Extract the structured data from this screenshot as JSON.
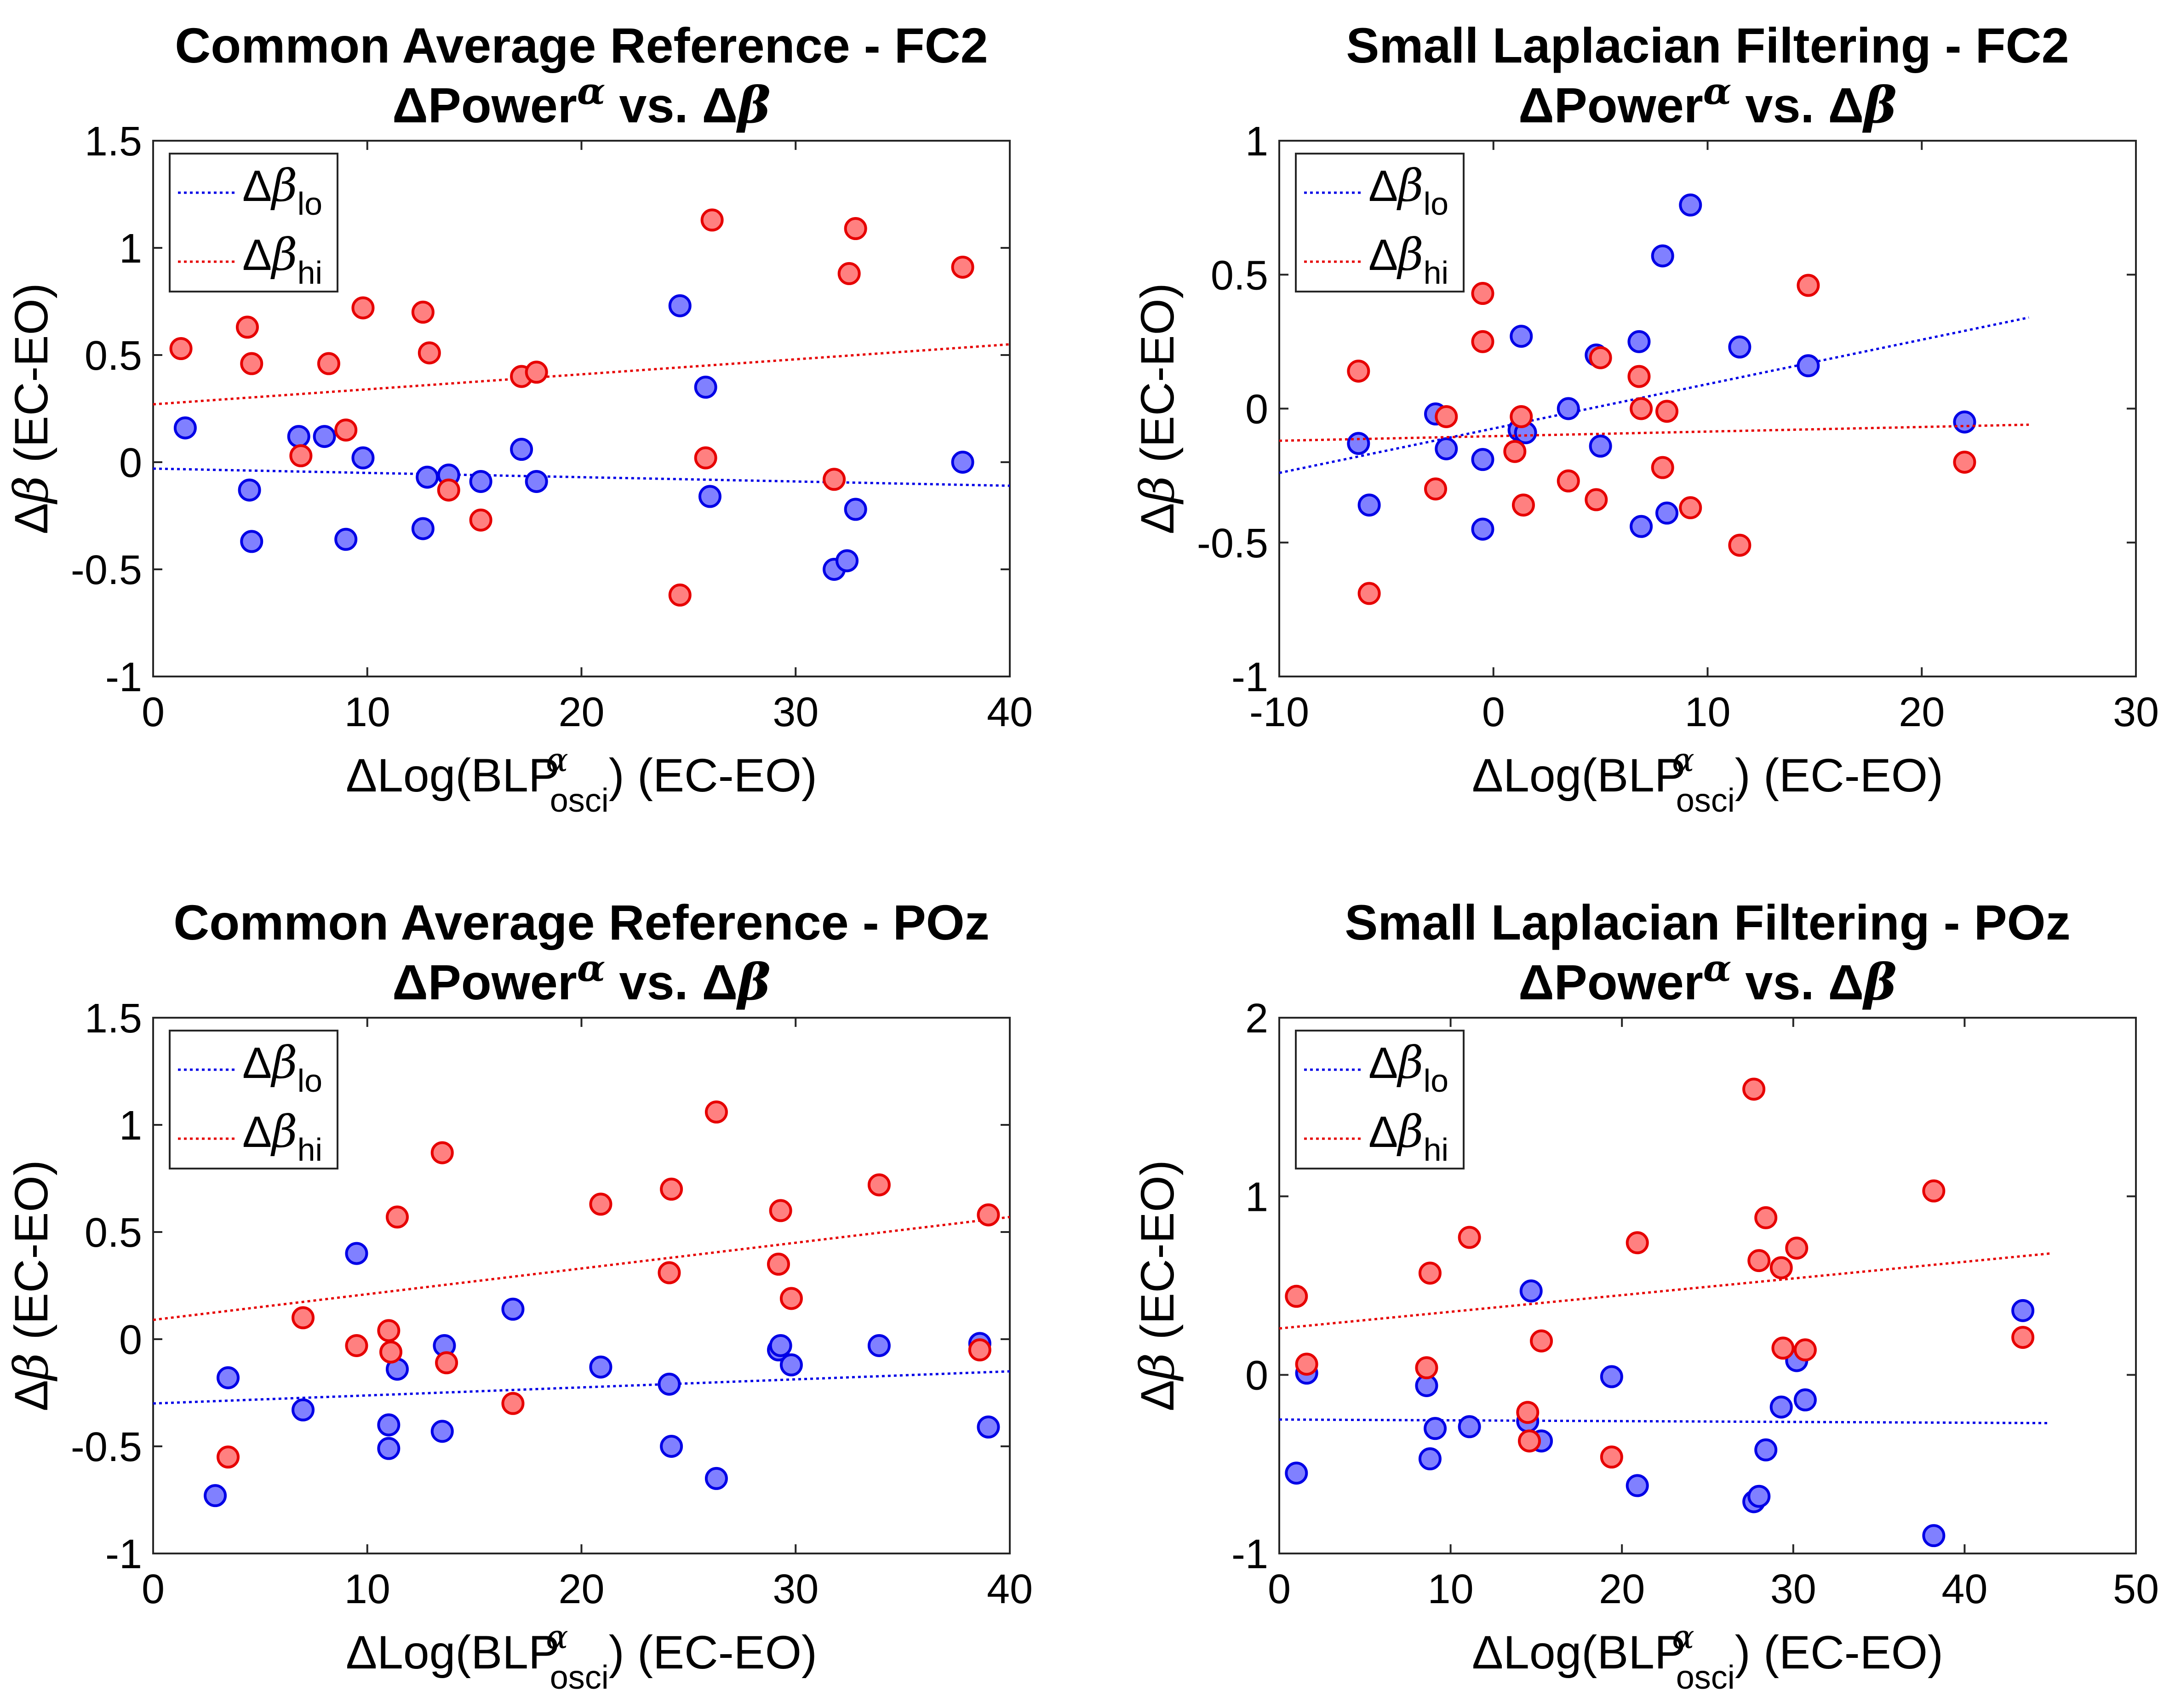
{
  "chart_data": [
    {
      "type": "scatter",
      "title": "Common Average Reference - FC2",
      "subtitle": "ΔPowerα vs. Δβ",
      "xlabel": "ΔLog(BLPαosci) (EC-EO)",
      "ylabel": "Δβ (EC-EO)",
      "xlim": [
        0,
        40
      ],
      "ylim": [
        -1,
        1.5
      ],
      "xticks": [
        0,
        10,
        20,
        30,
        40
      ],
      "yticks": [
        -1,
        -0.5,
        0,
        0.5,
        1,
        1.5
      ],
      "legend_placement": "top-left",
      "series": [
        {
          "name": "Δβlo",
          "color": "#0000e6",
          "fill": "#8080ff",
          "trend": [
            [
              0,
              -0.03
            ],
            [
              40,
              -0.11
            ]
          ],
          "points": [
            [
              1.5,
              0.16
            ],
            [
              4.5,
              -0.13
            ],
            [
              4.6,
              -0.37
            ],
            [
              6.8,
              0.12
            ],
            [
              8,
              0.12
            ],
            [
              9,
              -0.36
            ],
            [
              9.8,
              0.02
            ],
            [
              12.6,
              -0.31
            ],
            [
              12.8,
              -0.07
            ],
            [
              13.8,
              -0.06
            ],
            [
              15.3,
              -0.09
            ],
            [
              17.2,
              0.06
            ],
            [
              17.9,
              -0.09
            ],
            [
              24.6,
              0.73
            ],
            [
              25.8,
              0.35
            ],
            [
              26,
              -0.16
            ],
            [
              31.8,
              -0.5
            ],
            [
              32.4,
              -0.46
            ],
            [
              32.8,
              -0.22
            ],
            [
              37.8,
              0
            ]
          ]
        },
        {
          "name": "Δβhi",
          "color": "#e60000",
          "fill": "#ff8080",
          "trend": [
            [
              0,
              0.27
            ],
            [
              40,
              0.55
            ]
          ],
          "points": [
            [
              1.3,
              0.53
            ],
            [
              4.4,
              0.63
            ],
            [
              4.6,
              0.46
            ],
            [
              6.9,
              0.03
            ],
            [
              8.2,
              0.46
            ],
            [
              9,
              0.15
            ],
            [
              9.8,
              0.72
            ],
            [
              12.6,
              0.7
            ],
            [
              12.9,
              0.51
            ],
            [
              13.8,
              -0.13
            ],
            [
              15.3,
              -0.27
            ],
            [
              17.2,
              0.4
            ],
            [
              17.9,
              0.42
            ],
            [
              24.6,
              -0.62
            ],
            [
              25.8,
              0.02
            ],
            [
              26.1,
              1.13
            ],
            [
              31.8,
              -0.08
            ],
            [
              32.5,
              0.88
            ],
            [
              32.8,
              1.09
            ],
            [
              37.8,
              0.91
            ]
          ]
        }
      ]
    },
    {
      "type": "scatter",
      "title": "Small Laplacian Filtering - FC2",
      "subtitle": "ΔPowerα vs. Δβ",
      "xlabel": "ΔLog(BLPαosci) (EC-EO)",
      "ylabel": "Δβ (EC-EO)",
      "xlim": [
        -10,
        30
      ],
      "ylim": [
        -1,
        1
      ],
      "xticks": [
        -10,
        0,
        10,
        20,
        30
      ],
      "yticks": [
        -1,
        -0.5,
        0,
        0.5,
        1
      ],
      "legend_placement": "top-left",
      "series": [
        {
          "name": "Δβlo",
          "color": "#0000e6",
          "fill": "#8080ff",
          "trend": [
            [
              -10,
              -0.24
            ],
            [
              25,
              0.34
            ]
          ],
          "points": [
            [
              -6.3,
              -0.13
            ],
            [
              -5.8,
              -0.36
            ],
            [
              -2.7,
              -0.02
            ],
            [
              -2.2,
              -0.15
            ],
            [
              -0.5,
              -0.19
            ],
            [
              -0.5,
              -0.45
            ],
            [
              1.2,
              -0.08
            ],
            [
              1.3,
              0.27
            ],
            [
              1.5,
              -0.09
            ],
            [
              3.5,
              0
            ],
            [
              4.8,
              0.2
            ],
            [
              5,
              -0.14
            ],
            [
              6.8,
              0.25
            ],
            [
              6.9,
              -0.44
            ],
            [
              7.9,
              0.57
            ],
            [
              8.1,
              -0.39
            ],
            [
              9.2,
              0.76
            ],
            [
              11.5,
              0.23
            ],
            [
              14.7,
              0.16
            ],
            [
              22,
              -0.05
            ]
          ]
        },
        {
          "name": "Δβhi",
          "color": "#e60000",
          "fill": "#ff8080",
          "trend": [
            [
              -10,
              -0.12
            ],
            [
              25,
              -0.06
            ]
          ],
          "points": [
            [
              -6.3,
              0.14
            ],
            [
              -5.8,
              -0.69
            ],
            [
              -2.7,
              -0.3
            ],
            [
              -2.2,
              -0.03
            ],
            [
              -0.5,
              0.43
            ],
            [
              -0.5,
              0.25
            ],
            [
              1,
              -0.16
            ],
            [
              1.3,
              -0.03
            ],
            [
              1.4,
              -0.36
            ],
            [
              3.5,
              -0.27
            ],
            [
              4.8,
              -0.34
            ],
            [
              5,
              0.19
            ],
            [
              6.8,
              0.12
            ],
            [
              6.9,
              0
            ],
            [
              7.9,
              -0.22
            ],
            [
              8.1,
              -0.01
            ],
            [
              9.2,
              -0.37
            ],
            [
              11.5,
              -0.51
            ],
            [
              14.7,
              0.46
            ],
            [
              22,
              -0.2
            ]
          ]
        }
      ]
    },
    {
      "type": "scatter",
      "title": "Common Average Reference - POz",
      "subtitle": "ΔPowerα vs. Δβ",
      "xlabel": "ΔLog(BLPαosci) (EC-EO)",
      "ylabel": "Δβ (EC-EO)",
      "xlim": [
        0,
        40
      ],
      "ylim": [
        -1,
        1.5
      ],
      "xticks": [
        0,
        10,
        20,
        30,
        40
      ],
      "yticks": [
        -1,
        -0.5,
        0,
        0.5,
        1,
        1.5
      ],
      "legend_placement": "top-left",
      "series": [
        {
          "name": "Δβlo",
          "color": "#0000e6",
          "fill": "#8080ff",
          "trend": [
            [
              0,
              -0.3
            ],
            [
              40,
              -0.15
            ]
          ],
          "points": [
            [
              2.9,
              -0.73
            ],
            [
              3.5,
              -0.18
            ],
            [
              7,
              -0.33
            ],
            [
              9.5,
              0.4
            ],
            [
              11,
              -0.4
            ],
            [
              11,
              -0.51
            ],
            [
              11.4,
              -0.14
            ],
            [
              13.5,
              -0.43
            ],
            [
              13.6,
              -0.03
            ],
            [
              16.8,
              0.14
            ],
            [
              20.9,
              -0.13
            ],
            [
              24.1,
              -0.21
            ],
            [
              24.2,
              -0.5
            ],
            [
              26.3,
              -0.65
            ],
            [
              29.2,
              -0.05
            ],
            [
              29.3,
              -0.03
            ],
            [
              29.8,
              -0.12
            ],
            [
              33.9,
              -0.03
            ],
            [
              38.6,
              -0.02
            ],
            [
              39,
              -0.41
            ]
          ]
        },
        {
          "name": "Δβhi",
          "color": "#e60000",
          "fill": "#ff8080",
          "trend": [
            [
              0,
              0.09
            ],
            [
              40,
              0.57
            ]
          ],
          "points": [
            [
              3.5,
              -0.55
            ],
            [
              7,
              0.1
            ],
            [
              9.5,
              -0.03
            ],
            [
              11,
              0.04
            ],
            [
              11.1,
              -0.06
            ],
            [
              11.4,
              0.57
            ],
            [
              13.5,
              0.87
            ],
            [
              13.7,
              -0.11
            ],
            [
              16.8,
              -0.3
            ],
            [
              20.9,
              0.63
            ],
            [
              24.1,
              0.31
            ],
            [
              24.2,
              0.7
            ],
            [
              26.3,
              1.06
            ],
            [
              29.2,
              0.35
            ],
            [
              29.3,
              0.6
            ],
            [
              29.8,
              0.19
            ],
            [
              33.9,
              0.72
            ],
            [
              38.6,
              -0.05
            ],
            [
              39,
              0.58
            ]
          ]
        }
      ]
    },
    {
      "type": "scatter",
      "title": "Small Laplacian Filtering - POz",
      "subtitle": "ΔPowerα vs. Δβ",
      "xlabel": "ΔLog(BLPαosci) (EC-EO)",
      "ylabel": "Δβ (EC-EO)",
      "xlim": [
        0,
        50
      ],
      "ylim": [
        -1,
        2
      ],
      "xticks": [
        0,
        10,
        20,
        30,
        40,
        50
      ],
      "yticks": [
        -1,
        0,
        1,
        2
      ],
      "legend_placement": "top-left",
      "series": [
        {
          "name": "Δβlo",
          "color": "#0000e6",
          "fill": "#8080ff",
          "trend": [
            [
              0,
              -0.25
            ],
            [
              45,
              -0.27
            ]
          ],
          "points": [
            [
              1,
              -0.55
            ],
            [
              1.6,
              0.01
            ],
            [
              8.6,
              -0.06
            ],
            [
              8.8,
              -0.47
            ],
            [
              9.1,
              -0.3
            ],
            [
              11.1,
              -0.29
            ],
            [
              14.5,
              -0.26
            ],
            [
              14.7,
              0.47
            ],
            [
              15.3,
              -0.37
            ],
            [
              19.4,
              -0.01
            ],
            [
              20.9,
              -0.62
            ],
            [
              27.7,
              -0.71
            ],
            [
              28,
              -0.68
            ],
            [
              28.4,
              -0.42
            ],
            [
              29.3,
              -0.18
            ],
            [
              30.2,
              0.08
            ],
            [
              30.7,
              -0.14
            ],
            [
              38.2,
              -0.9
            ],
            [
              43.4,
              0.36
            ]
          ]
        },
        {
          "name": "Δβhi",
          "color": "#e60000",
          "fill": "#ff8080",
          "trend": [
            [
              0,
              0.26
            ],
            [
              45,
              0.68
            ]
          ],
          "points": [
            [
              1,
              0.44
            ],
            [
              1.6,
              0.06
            ],
            [
              8.6,
              0.04
            ],
            [
              8.8,
              0.57
            ],
            [
              11.1,
              0.77
            ],
            [
              14.5,
              -0.21
            ],
            [
              14.6,
              -0.37
            ],
            [
              15.3,
              0.19
            ],
            [
              19.4,
              -0.46
            ],
            [
              20.9,
              0.74
            ],
            [
              27.7,
              1.6
            ],
            [
              28,
              0.64
            ],
            [
              28.4,
              0.88
            ],
            [
              29.3,
              0.6
            ],
            [
              29.4,
              0.15
            ],
            [
              30.2,
              0.71
            ],
            [
              30.7,
              0.14
            ],
            [
              38.2,
              1.03
            ],
            [
              43.4,
              0.21
            ]
          ]
        }
      ]
    }
  ]
}
